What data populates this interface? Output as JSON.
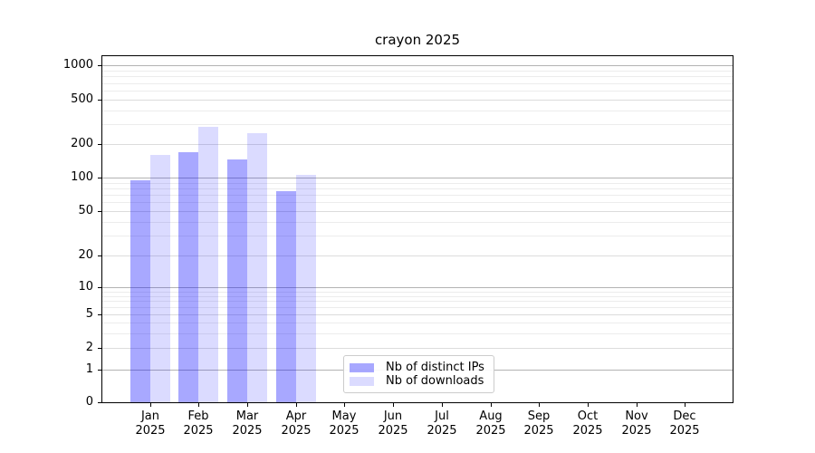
{
  "chart_data": {
    "type": "bar",
    "title": "crayon 2025",
    "categories": [
      "Jan",
      "Feb",
      "Mar",
      "Apr",
      "May",
      "Jun",
      "Jul",
      "Aug",
      "Sep",
      "Oct",
      "Nov",
      "Dec"
    ],
    "x_year_label": "2025",
    "series": [
      {
        "name": "Nb of distinct IPs",
        "color": "#0000ff",
        "opacity": 0.34,
        "apparent_color": "#a9a9fb",
        "values": [
          94,
          170,
          146,
          76,
          null,
          null,
          null,
          null,
          null,
          null,
          null,
          null
        ]
      },
      {
        "name": "Nb of downloads",
        "color": "#0000ff",
        "opacity": 0.14,
        "apparent_color": "#dcdcfb",
        "values": [
          160,
          285,
          250,
          105,
          null,
          null,
          null,
          null,
          null,
          null,
          null,
          null
        ]
      }
    ],
    "yscale": "symlog",
    "ylim": [
      0,
      1250
    ],
    "y_ticks": [
      0,
      1,
      2,
      5,
      10,
      20,
      50,
      100,
      200,
      500,
      1000
    ],
    "grid": {
      "major": [
        1,
        10,
        100,
        1000
      ],
      "mid": [
        2,
        5,
        20,
        50,
        200,
        500
      ],
      "minor": [
        3,
        4,
        6,
        7,
        8,
        9,
        30,
        40,
        60,
        70,
        80,
        90,
        300,
        400,
        600,
        700,
        800,
        900
      ]
    },
    "grid_colors": {
      "major": "#b3b3b3",
      "mid": "#dcdcdc",
      "minor": "#ececec"
    },
    "xlabel": "",
    "ylabel": "",
    "legend_position": "inside-bottom-center"
  }
}
